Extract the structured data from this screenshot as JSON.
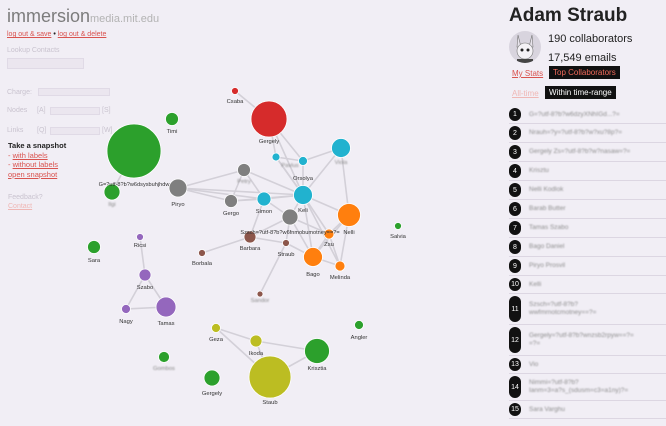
{
  "app": {
    "name": "immersion",
    "domain": "media.mit.edu"
  },
  "session": {
    "logout_save": "log out & save",
    "separator": "•",
    "logout_delete": "log out & delete"
  },
  "controls": {
    "lookup_label": "Lookup Contacts",
    "charge_label": "Charge:",
    "nodes_label": "Nodes",
    "nodes_left": "[A]",
    "nodes_right": "[S]",
    "links_label": "Links",
    "links_left": "[Q]",
    "links_right": "[W]"
  },
  "snapshot": {
    "title": "Take a snapshot",
    "with_labels": "with labels",
    "without_labels": "without labels",
    "open": "open snapshot"
  },
  "feedback": {
    "label": "Feedback?",
    "contact": "Contact"
  },
  "user": {
    "name": "Adam Straub",
    "collaborators": "190 collaborators",
    "emails": "17,549 emails"
  },
  "tabs": {
    "my_stats": "My Stats",
    "top_collaborators": "Top Collaborators",
    "all_time": "All-time",
    "within_range": "Within time-range"
  },
  "collaborators": [
    {
      "rank": "1",
      "name": "G=?utf-8?b?w6dzyXNhIGd...?="
    },
    {
      "rank": "2",
      "name": "Nrauh=?y=?utf-8?b?w?xu?8p?="
    },
    {
      "rank": "3",
      "name": "Gergely Zs=?utf-8?b?w?nasaw=?="
    },
    {
      "rank": "4",
      "name": "Krisztu"
    },
    {
      "rank": "5",
      "name": "Nelli Kodlok"
    },
    {
      "rank": "6",
      "name": "Barab Butter"
    },
    {
      "rank": "7",
      "name": "Tamas Szabo"
    },
    {
      "rank": "8",
      "name": "Bago Daniel"
    },
    {
      "rank": "9",
      "name": "Piryo Prosvil"
    },
    {
      "rank": "10",
      "name": "Kelli"
    },
    {
      "rank": "11",
      "name": "Szsch=?utf-8?b?\nwwfmrnotcmotney==?="
    },
    {
      "rank": "12",
      "name": "Gergely=?utf-8?b?wnzsb2rpyw==?=\n=?="
    },
    {
      "rank": "13",
      "name": "Vio"
    },
    {
      "rank": "14",
      "name": "Nimmi=?utf-8?b?\nIanm=3=a?s_(sdusm=c3=a1ny)?="
    },
    {
      "rank": "15",
      "name": "Sara Varghu"
    }
  ],
  "graph": {
    "nodes": [
      {
        "id": "csaba",
        "label": "Csaba",
        "color": "#d62b2b",
        "blurred": false
      },
      {
        "id": "gergely1",
        "label": "Gergely",
        "color": "#d62b2b",
        "blurred": false
      },
      {
        "id": "timi",
        "label": "Timi",
        "color": "#2ca02c",
        "blurred": false
      },
      {
        "id": "g_big",
        "label": "G=?utf-8?b?w6dsysbuhjhdw",
        "color": "#2ca02c",
        "blurred": false
      },
      {
        "id": "ligi",
        "label": "Ilgi",
        "color": "#2ca02c",
        "blurred": true
      },
      {
        "id": "piryo",
        "label": "Piryo",
        "color": "#7f7f7f",
        "blurred": false
      },
      {
        "id": "petry",
        "label": "Petry",
        "color": "#7f7f7f",
        "blurred": true
      },
      {
        "id": "pavlus",
        "label": "Pavlus",
        "color": "#21b2cf",
        "blurred": true
      },
      {
        "id": "orsolya",
        "label": "Orsolya",
        "color": "#21b2cf",
        "blurred": false
      },
      {
        "id": "viola",
        "label": "Viola",
        "color": "#21b2cf",
        "blurred": true
      },
      {
        "id": "gergo",
        "label": "Gergo",
        "color": "#7f7f7f",
        "blurred": false
      },
      {
        "id": "simon",
        "label": "Simon",
        "color": "#21b2cf",
        "blurred": false
      },
      {
        "id": "keli",
        "label": "Keli",
        "color": "#21b2cf",
        "blurred": false
      },
      {
        "id": "nelli",
        "label": "Nelli",
        "color": "#ff7f0e",
        "blurred": false
      },
      {
        "id": "szsch",
        "label": "Szsch=?utf-8?b?w6fnmobumotney==?=",
        "color": "#7f7f7f",
        "blurred": false
      },
      {
        "id": "zsu",
        "label": "Zsu",
        "color": "#ff7f0e",
        "blurred": false
      },
      {
        "id": "barbara",
        "label": "Barbara",
        "color": "#8c564b",
        "blurred": false
      },
      {
        "id": "straub",
        "label": "Straub",
        "color": "#8c564b",
        "blurred": false
      },
      {
        "id": "bago",
        "label": "Bago",
        "color": "#ff7f0e",
        "blurred": false
      },
      {
        "id": "melinda",
        "label": "Melinda",
        "color": "#ff7f0e",
        "blurred": false
      },
      {
        "id": "salvia",
        "label": "Salvia",
        "color": "#2ca02c",
        "blurred": false
      },
      {
        "id": "borbala",
        "label": "Borbala",
        "color": "#8c564b",
        "blurred": false
      },
      {
        "id": "sara",
        "label": "Sara",
        "color": "#2ca02c",
        "blurred": false
      },
      {
        "id": "ricsi",
        "label": "Ricsi",
        "color": "#9467bd",
        "blurred": false
      },
      {
        "id": "szabo",
        "label": "Szabo",
        "color": "#9467bd",
        "blurred": false
      },
      {
        "id": "nagy",
        "label": "Nagy",
        "color": "#9467bd",
        "blurred": false
      },
      {
        "id": "tamas",
        "label": "Tamas",
        "color": "#9467bd",
        "blurred": false
      },
      {
        "id": "sandor",
        "label": "Sandor",
        "color": "#8c564b",
        "blurred": true
      },
      {
        "id": "geza",
        "label": "Geza",
        "color": "#bcbd22",
        "blurred": false
      },
      {
        "id": "ikoda",
        "label": "Ikoda",
        "color": "#bcbd22",
        "blurred": false
      },
      {
        "id": "angler",
        "label": "Angler",
        "color": "#2ca02c",
        "blurred": false
      },
      {
        "id": "krisztia",
        "label": "Krisztia",
        "color": "#2ca02c",
        "blurred": false
      },
      {
        "id": "gombos",
        "label": "Gombos",
        "color": "#2ca02c",
        "blurred": true
      },
      {
        "id": "staub",
        "label": "Staub",
        "color": "#bcbd22",
        "blurred": false
      },
      {
        "id": "gergely2",
        "label": "Gergely",
        "color": "#2ca02c",
        "blurred": false
      }
    ],
    "links": [
      [
        "csaba",
        "gergely1"
      ],
      [
        "gergely1",
        "orsolya"
      ],
      [
        "gergely1",
        "keli"
      ],
      [
        "gergely1",
        "pavlus"
      ],
      [
        "petry",
        "simon"
      ],
      [
        "petry",
        "gergo"
      ],
      [
        "petry",
        "keli"
      ],
      [
        "pavlus",
        "keli"
      ],
      [
        "pavlus",
        "orsolya"
      ],
      [
        "orsolya",
        "keli"
      ],
      [
        "orsolya",
        "viola"
      ],
      [
        "viola",
        "keli"
      ],
      [
        "viola",
        "nelli"
      ],
      [
        "gergo",
        "simon"
      ],
      [
        "gergo",
        "keli"
      ],
      [
        "simon",
        "keli"
      ],
      [
        "simon",
        "szsch"
      ],
      [
        "simon",
        "barbara"
      ],
      [
        "keli",
        "nelli"
      ],
      [
        "keli",
        "szsch"
      ],
      [
        "keli",
        "zsu"
      ],
      [
        "keli",
        "bago"
      ],
      [
        "keli",
        "melinda"
      ],
      [
        "nelli",
        "zsu"
      ],
      [
        "nelli",
        "melinda"
      ],
      [
        "nelli",
        "bago"
      ],
      [
        "zsu",
        "bago"
      ],
      [
        "zsu",
        "melinda"
      ],
      [
        "bago",
        "melinda"
      ],
      [
        "szsch",
        "barbara"
      ],
      [
        "szsch",
        "straub"
      ],
      [
        "szsch",
        "zsu"
      ],
      [
        "szsch",
        "bago"
      ],
      [
        "barbara",
        "straub"
      ],
      [
        "barbara",
        "borbala"
      ],
      [
        "straub",
        "bago"
      ],
      [
        "straub",
        "sandor"
      ],
      [
        "piryo",
        "simon"
      ],
      [
        "piryo",
        "gergo"
      ],
      [
        "piryo",
        "petry"
      ],
      [
        "piryo",
        "keli"
      ],
      [
        "ricsi",
        "szabo"
      ],
      [
        "szabo",
        "nagy"
      ],
      [
        "szabo",
        "tamas"
      ],
      [
        "nagy",
        "tamas"
      ],
      [
        "geza",
        "ikoda"
      ],
      [
        "geza",
        "staub"
      ],
      [
        "ikoda",
        "staub"
      ],
      [
        "ikoda",
        "krisztia"
      ],
      [
        "staub",
        "krisztia"
      ],
      [
        "g_big",
        "ligi"
      ],
      [
        "keli",
        "pavlus"
      ]
    ]
  }
}
